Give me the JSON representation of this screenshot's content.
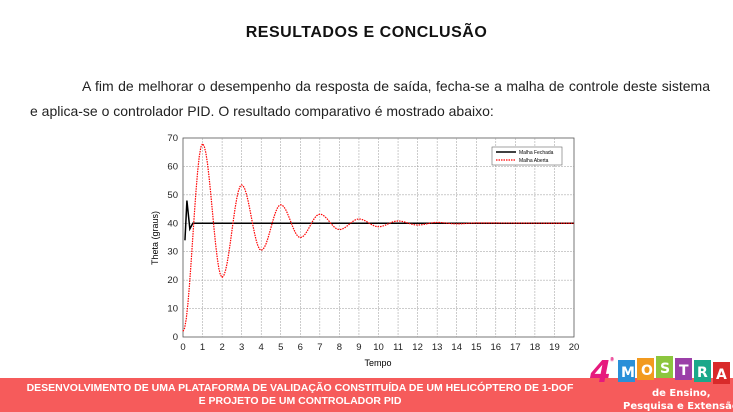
{
  "title": "RESULTADOS E CONCLUSÃO",
  "paragraph": "A fim de melhorar o desempenho da resposta de saída, fecha-se a malha de controle deste sistema e aplica-se o controlador PID. O resultado comparativo é mostrado abaixo:",
  "chart_data": {
    "type": "line",
    "xlabel": "Tempo",
    "ylabel": "Theta (graus)",
    "xlim": [
      0,
      20
    ],
    "ylim": [
      0,
      70
    ],
    "xticks": [
      "0",
      "1",
      "2",
      "3",
      "4",
      "5",
      "6",
      "7",
      "8",
      "9",
      "10",
      "11",
      "12",
      "13",
      "14",
      "15",
      "16",
      "17",
      "18",
      "19",
      "20"
    ],
    "yticks": [
      "0",
      "10",
      "20",
      "30",
      "40",
      "50",
      "60",
      "70"
    ],
    "grid": true,
    "legend_position": "top-right",
    "series": [
      {
        "name": "Malha Fechada",
        "color": "#000000",
        "style": "solid",
        "x": [
          0.1,
          0.2,
          0.35,
          0.5,
          20
        ],
        "y": [
          34,
          48,
          38,
          40,
          40
        ]
      },
      {
        "name": "Malha Aberta",
        "color": "#ff0000",
        "style": "dotted",
        "x": [
          0,
          1,
          2,
          3,
          4,
          5,
          6,
          7,
          8,
          9,
          10,
          11,
          12,
          13,
          14,
          15,
          20
        ],
        "y": [
          2,
          68,
          21,
          53.5,
          30.5,
          46.5,
          35,
          43.2,
          37.8,
          41.5,
          38.8,
          40.8,
          39.4,
          40.3,
          39.8,
          40.1,
          40
        ]
      }
    ]
  },
  "footer": {
    "line1": "DESENVOLVIMENTO DE UMA PLATAFORMA DE VALIDAÇÃO CONSTITUÍDA DE UM HELICÓPTERO DE 1-DOF",
    "line2": "E PROJETO DE UM CONTROLADOR PID",
    "color": "#f65b5b"
  },
  "logo": {
    "number": "4",
    "ordinal": "ª",
    "word": "MOSTRA",
    "sub1": "de Ensino,",
    "sub2": "Pesquisa e Extensão"
  }
}
